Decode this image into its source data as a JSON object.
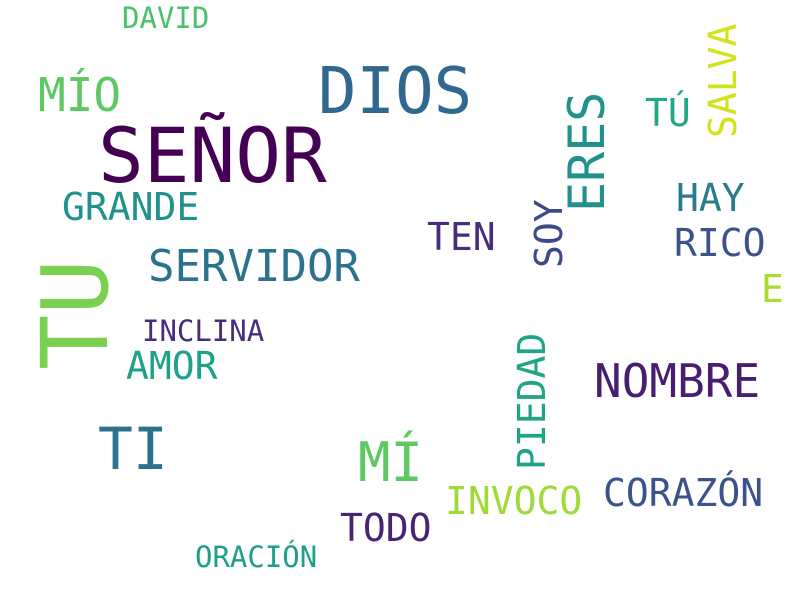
{
  "words": [
    {
      "text": "SEÑOR",
      "color": "#440154"
    },
    {
      "text": "DIOS",
      "color": "#31688e"
    },
    {
      "text": "TU",
      "color": "#7ad151"
    },
    {
      "text": "ERES",
      "color": "#21918c"
    },
    {
      "text": "TI",
      "color": "#2c728e"
    },
    {
      "text": "SERVIDOR",
      "color": "#2c728e"
    },
    {
      "text": "NOMBRE",
      "color": "#481f70"
    },
    {
      "text": "MÍ",
      "color": "#5ec962"
    },
    {
      "text": "MÍO",
      "color": "#5ec962"
    },
    {
      "text": "GRANDE",
      "color": "#21918c"
    },
    {
      "text": "PIEDAD",
      "color": "#20a486"
    },
    {
      "text": "SALVA",
      "color": "#d2e21b"
    },
    {
      "text": "CORAZÓN",
      "color": "#3b528b"
    },
    {
      "text": "INVOCO",
      "color": "#a0da39"
    },
    {
      "text": "AMOR",
      "color": "#1fa187"
    },
    {
      "text": "TODO",
      "color": "#482475"
    },
    {
      "text": "HAY",
      "color": "#287c8e"
    },
    {
      "text": "RICO",
      "color": "#3b528b"
    },
    {
      "text": "TEN",
      "color": "#472d7b"
    },
    {
      "text": "SOY",
      "color": "#3e4989"
    },
    {
      "text": "TÚ",
      "color": "#22a884"
    },
    {
      "text": "INCLINA",
      "color": "#472d7b"
    },
    {
      "text": "DAVID",
      "color": "#4ac16d"
    },
    {
      "text": "ORACIÓN",
      "color": "#1f9e89"
    },
    {
      "text": "E",
      "color": "#addc30"
    }
  ]
}
